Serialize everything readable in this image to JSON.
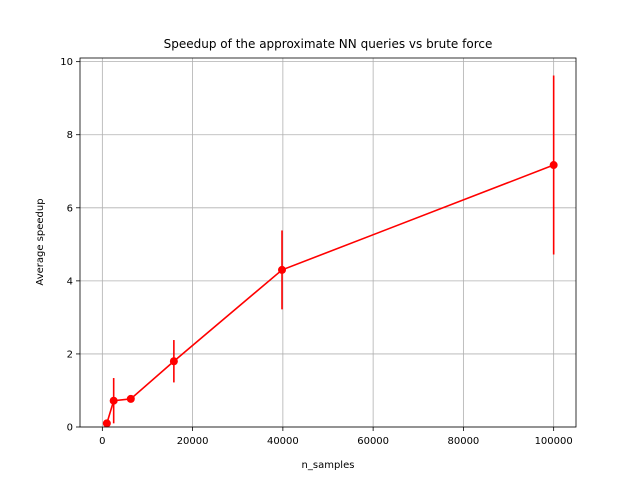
{
  "chart_data": {
    "type": "line",
    "title": "Speedup of the approximate NN queries vs brute force",
    "xlabel": "n_samples",
    "ylabel": "Average speedup",
    "xlim": [
      -4950,
      104950
    ],
    "ylim": [
      0,
      10.1
    ],
    "x_ticks": [
      0,
      20000,
      40000,
      60000,
      80000,
      100000
    ],
    "y_ticks": [
      0,
      2,
      4,
      6,
      8,
      10
    ],
    "grid": true,
    "series": [
      {
        "color": "#ff0000",
        "x": [
          1000,
          2512,
          6310,
          15849,
          39811,
          100000
        ],
        "y": [
          0.1,
          0.72,
          0.77,
          1.8,
          4.3,
          7.17
        ],
        "yerr": [
          0.05,
          0.62,
          0.1,
          0.58,
          1.08,
          2.45
        ]
      }
    ]
  }
}
